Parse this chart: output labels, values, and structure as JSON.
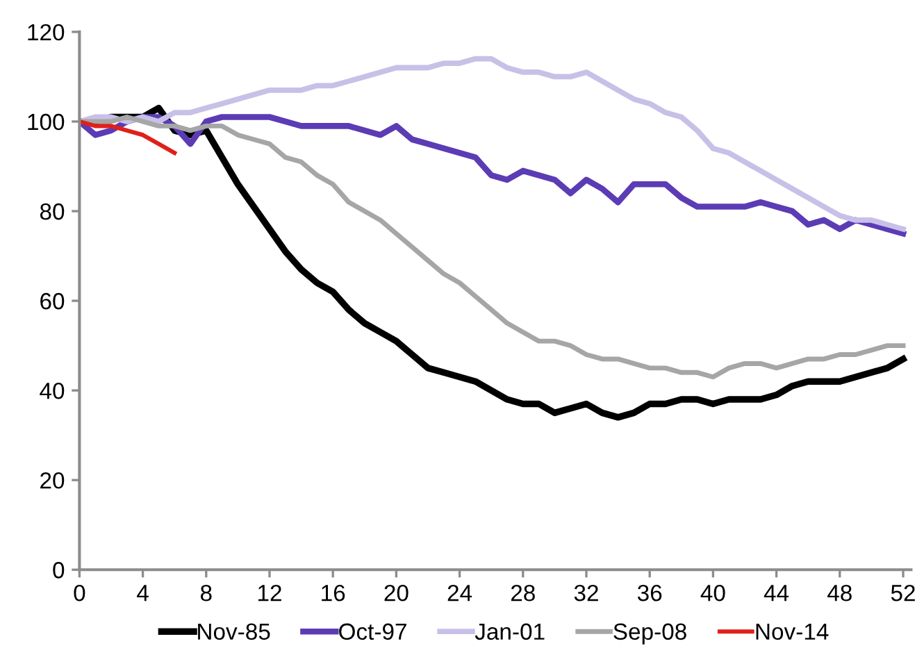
{
  "chart_data": {
    "type": "line",
    "x": [
      0,
      1,
      2,
      3,
      4,
      5,
      6,
      7,
      8,
      9,
      10,
      11,
      12,
      13,
      14,
      15,
      16,
      17,
      18,
      19,
      20,
      21,
      22,
      23,
      24,
      25,
      26,
      27,
      28,
      29,
      30,
      31,
      32,
      33,
      34,
      35,
      36,
      37,
      38,
      39,
      40,
      41,
      42,
      43,
      44,
      45,
      46,
      47,
      48,
      49,
      50,
      51,
      52
    ],
    "series": [
      {
        "name": "Nov-85",
        "color": "#000000",
        "values": [
          100,
          100,
          101,
          101,
          101,
          103,
          98,
          97,
          98,
          92,
          86,
          81,
          76,
          71,
          67,
          64,
          62,
          58,
          55,
          53,
          51,
          48,
          45,
          44,
          43,
          42,
          40,
          38,
          37,
          37,
          35,
          36,
          37,
          35,
          34,
          35,
          37,
          37,
          38,
          38,
          37,
          38,
          38,
          38,
          39,
          41,
          42,
          42,
          42,
          43,
          44,
          45,
          47
        ]
      },
      {
        "name": "Oct-97",
        "color": "#5b3cb5",
        "values": [
          100,
          97,
          98,
          100,
          101,
          101,
          99,
          95,
          100,
          101,
          101,
          101,
          101,
          100,
          99,
          99,
          99,
          99,
          98,
          97,
          99,
          96,
          95,
          94,
          93,
          92,
          88,
          87,
          89,
          88,
          87,
          84,
          87,
          85,
          82,
          86,
          86,
          86,
          83,
          81,
          81,
          81,
          81,
          82,
          81,
          80,
          77,
          78,
          76,
          78,
          77,
          76,
          75
        ]
      },
      {
        "name": "Jan-01",
        "color": "#c9c0e8",
        "values": [
          100,
          101,
          101,
          100,
          101,
          100,
          102,
          102,
          103,
          104,
          105,
          106,
          107,
          107,
          107,
          108,
          108,
          109,
          110,
          111,
          112,
          112,
          112,
          113,
          113,
          114,
          114,
          112,
          111,
          111,
          110,
          110,
          111,
          109,
          107,
          105,
          104,
          102,
          101,
          98,
          94,
          93,
          91,
          89,
          87,
          85,
          83,
          81,
          79,
          78,
          78,
          77,
          76
        ]
      },
      {
        "name": "Sep-08",
        "color": "#a6a6a6",
        "values": [
          100,
          100,
          100,
          101,
          100,
          99,
          99,
          98,
          99,
          99,
          97,
          96,
          95,
          92,
          91,
          88,
          86,
          82,
          80,
          78,
          75,
          72,
          69,
          66,
          64,
          61,
          58,
          55,
          53,
          51,
          51,
          50,
          48,
          47,
          47,
          46,
          45,
          45,
          44,
          44,
          43,
          45,
          46,
          46,
          45,
          46,
          47,
          47,
          48,
          48,
          49,
          50,
          50
        ]
      },
      {
        "name": "Nov-14",
        "color": "#e0201b",
        "x": [
          0,
          1,
          2,
          3,
          4,
          5,
          6
        ],
        "values": [
          100,
          99,
          99,
          98,
          97,
          95,
          93
        ]
      }
    ],
    "xlim": [
      0,
      52.5
    ],
    "xticks": [
      0,
      4,
      8,
      12,
      16,
      20,
      24,
      28,
      32,
      36,
      40,
      44,
      48,
      52
    ],
    "ylim": [
      0,
      120
    ],
    "yticks": [
      0,
      20,
      40,
      60,
      80,
      100,
      120
    ],
    "grid": false,
    "legend": "bottom",
    "marker": "none",
    "line_style": "solid"
  }
}
